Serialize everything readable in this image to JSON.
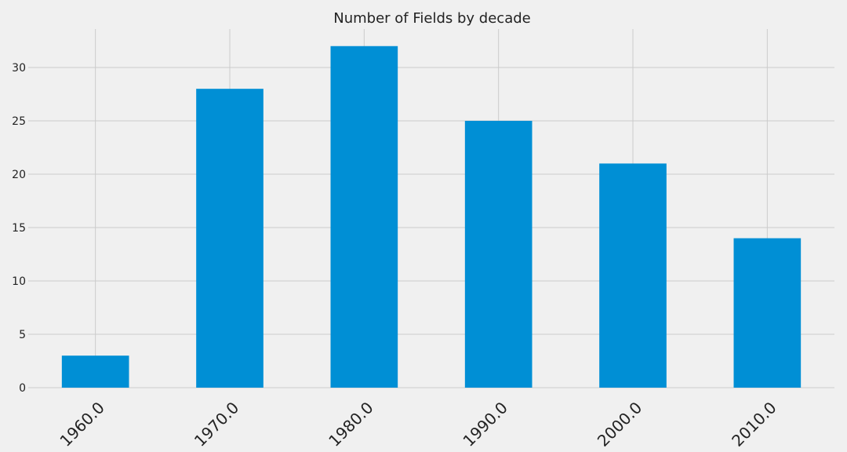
{
  "chart_data": {
    "type": "bar",
    "title": "Number of Fields by decade",
    "xlabel": "",
    "ylabel": "",
    "categories": [
      "1960.0",
      "1970.0",
      "1980.0",
      "1990.0",
      "2000.0",
      "2010.0"
    ],
    "values": [
      3,
      28,
      32,
      25,
      21,
      14
    ],
    "ylim": [
      0,
      33.6
    ],
    "yticks": [
      0,
      5,
      10,
      15,
      20,
      25,
      30
    ],
    "grid": true,
    "legend": "none",
    "bar_color": "#008fd5",
    "background_color": "#f0f0f0",
    "grid_color": "#cbcbcb"
  }
}
